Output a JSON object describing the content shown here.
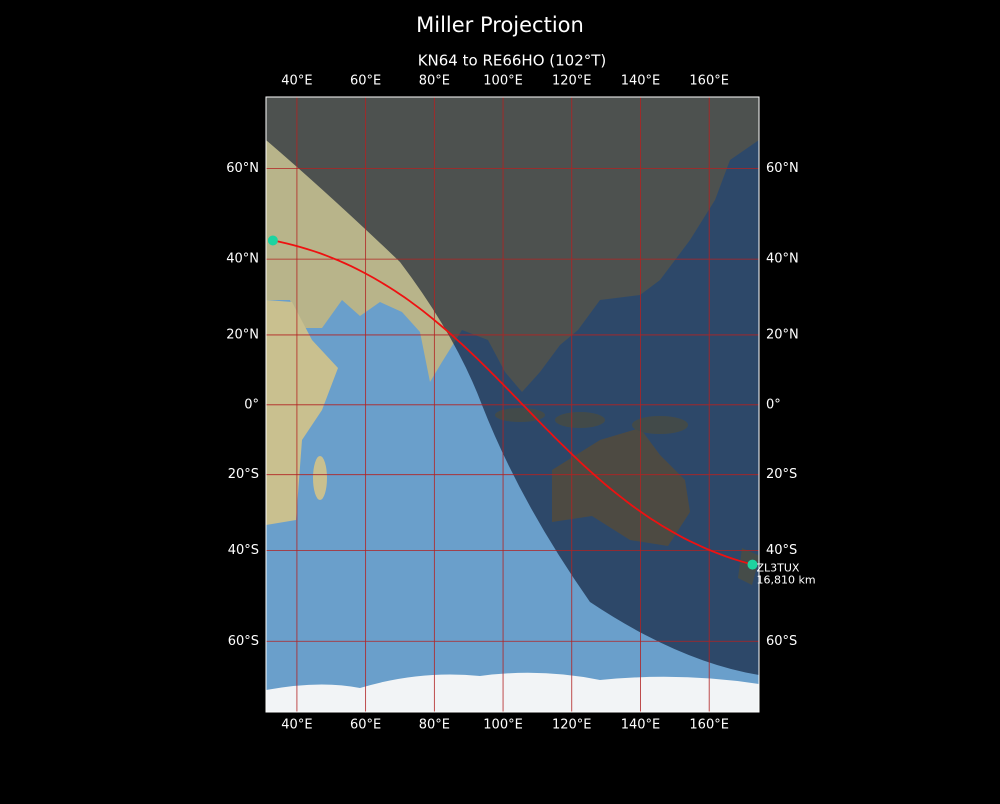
{
  "title": "Miller Projection",
  "subtitle": "KN64 to RE66HO (102°T)",
  "map": {
    "projection": "miller",
    "xlim": [
      31,
      174.5
    ],
    "ylim": [
      -72.3,
      72.4
    ],
    "xticks": [
      {
        "value": 40,
        "label": "40°E"
      },
      {
        "value": 60,
        "label": "60°E"
      },
      {
        "value": 80,
        "label": "80°E"
      },
      {
        "value": 100,
        "label": "100°E"
      },
      {
        "value": 120,
        "label": "120°E"
      },
      {
        "value": 140,
        "label": "140°E"
      },
      {
        "value": 160,
        "label": "160°E"
      }
    ],
    "yticks": [
      {
        "value": -60,
        "label": "60°S"
      },
      {
        "value": -40,
        "label": "40°S"
      },
      {
        "value": -20,
        "label": "20°S"
      },
      {
        "value": 0,
        "label": "0°"
      },
      {
        "value": 20,
        "label": "20°N"
      },
      {
        "value": 40,
        "label": "40°N"
      },
      {
        "value": 60,
        "label": "60°N"
      }
    ],
    "grid_color": "#b22222",
    "path_color": "#ee1111",
    "marker_color": "#1dd3a0",
    "stations": [
      {
        "lon": 33,
        "lat": 44.5
      },
      {
        "label": "ZL3TUX",
        "distance": "16,810 km",
        "lon": 172.6,
        "lat": -43.4
      }
    ]
  }
}
